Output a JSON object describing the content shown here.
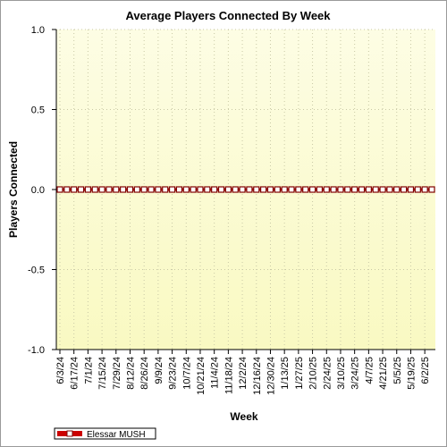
{
  "chart_data": {
    "type": "line",
    "title": "Average Players Connected By Week",
    "xlabel": "Week",
    "ylabel": "Players Connected",
    "ylim": [
      -1.0,
      1.0
    ],
    "yticks": [
      1.0,
      0.5,
      0.0,
      -0.5,
      -1.0
    ],
    "ytick_labels": [
      "1.0",
      "0.5",
      "0.0",
      "-0.5",
      "-1.0"
    ],
    "grid": true,
    "legend_position": "bottom-left",
    "x_tick_labels": [
      "6/3/24",
      "6/17/24",
      "7/1/24",
      "7/15/24",
      "7/29/24",
      "8/12/24",
      "8/26/24",
      "9/9/24",
      "9/23/24",
      "10/7/24",
      "10/21/24",
      "11/4/24",
      "11/18/24",
      "12/2/24",
      "12/16/24",
      "12/30/24",
      "1/13/25",
      "1/27/25",
      "2/10/25",
      "2/24/25",
      "3/10/25",
      "3/24/25",
      "4/7/25",
      "4/21/25",
      "5/5/25",
      "5/19/25",
      "6/2/25"
    ],
    "series": [
      {
        "name": "Elessar MUSH",
        "color": "#cc0000",
        "marker": "square",
        "start": "6/3/24",
        "values": [
          0,
          0,
          0,
          0,
          0,
          0,
          0,
          0,
          0,
          0,
          0,
          0,
          0,
          0,
          0,
          0,
          0,
          0,
          0,
          0,
          0,
          0,
          0,
          0,
          0,
          0,
          0,
          0,
          0,
          0,
          0,
          0,
          0,
          0,
          0,
          0,
          0,
          0,
          0,
          0,
          0,
          0,
          0,
          0,
          0,
          0,
          0,
          0,
          0,
          0,
          0,
          0,
          0,
          0
        ]
      }
    ],
    "colors": {
      "plot_top": "#fdfde4",
      "plot_bottom": "#f9f9c2",
      "grid": "#c9c9a6"
    }
  }
}
